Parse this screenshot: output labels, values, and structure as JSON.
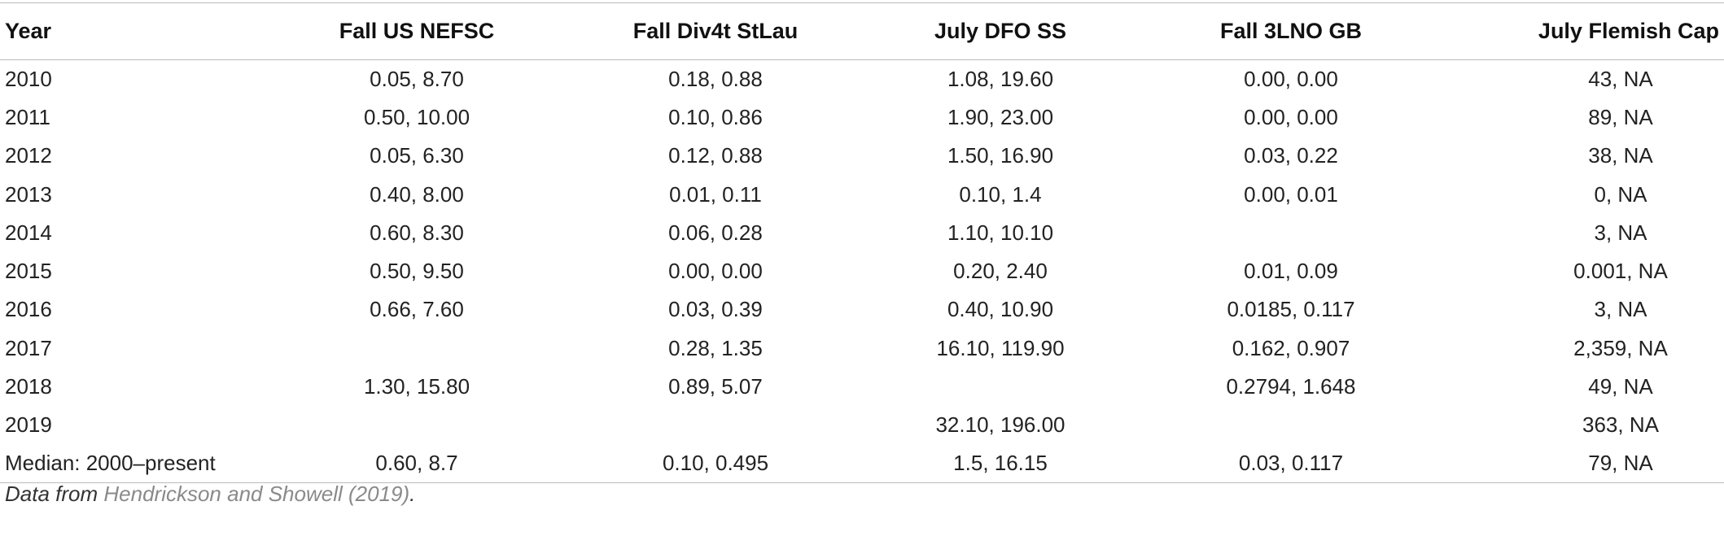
{
  "table": {
    "headers": [
      "Year",
      "Fall US NEFSC",
      "Fall Div4t StLau",
      "July DFO SS",
      "Fall 3LNO GB",
      "July Flemish Cap"
    ],
    "rows": [
      [
        "2010",
        "0.05, 8.70",
        "0.18, 0.88",
        "1.08, 19.60",
        "0.00, 0.00",
        "43, NA"
      ],
      [
        "2011",
        "0.50, 10.00",
        "0.10, 0.86",
        "1.90, 23.00",
        "0.00, 0.00",
        "89, NA"
      ],
      [
        "2012",
        "0.05, 6.30",
        "0.12, 0.88",
        "1.50, 16.90",
        "0.03, 0.22",
        "38, NA"
      ],
      [
        "2013",
        "0.40, 8.00",
        "0.01, 0.11",
        "0.10, 1.4",
        "0.00, 0.01",
        "0, NA"
      ],
      [
        "2014",
        "0.60, 8.30",
        "0.06, 0.28",
        "1.10, 10.10",
        "",
        "3, NA"
      ],
      [
        "2015",
        "0.50, 9.50",
        "0.00, 0.00",
        "0.20, 2.40",
        "0.01, 0.09",
        "0.001, NA"
      ],
      [
        "2016",
        "0.66, 7.60",
        "0.03, 0.39",
        "0.40, 10.90",
        "0.0185, 0.117",
        "3, NA"
      ],
      [
        "2017",
        "",
        "0.28, 1.35",
        "16.10, 119.90",
        "0.162, 0.907",
        "2,359, NA"
      ],
      [
        "2018",
        "1.30, 15.80",
        "0.89, 5.07",
        "",
        "0.2794, 1.648",
        "49, NA"
      ],
      [
        "2019",
        "",
        "",
        "32.10, 196.00",
        "",
        "363, NA"
      ],
      [
        "Median: 2000–present",
        "0.60, 8.7",
        "0.10, 0.495",
        "1.5, 16.15",
        "0.03, 0.117",
        "79, NA"
      ]
    ]
  },
  "footnote": {
    "prefix": "Data from ",
    "reference": "Hendrickson and Showell (2019)",
    "suffix": "."
  }
}
